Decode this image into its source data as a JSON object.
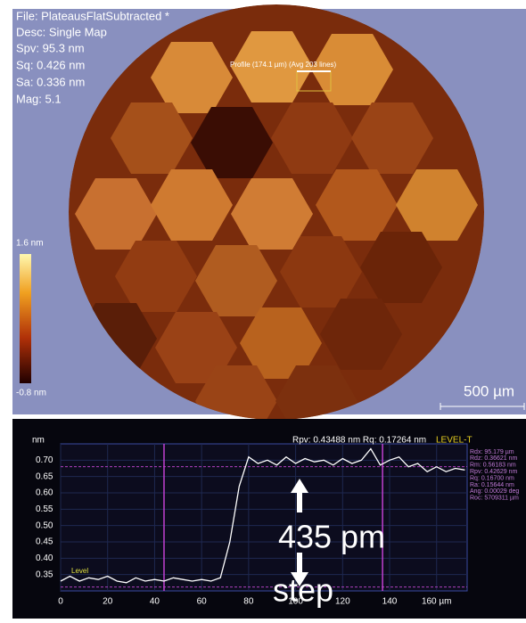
{
  "header": {
    "file": "File: PlateausFlatSubtracted *",
    "desc": "Desc: Single Map",
    "spv": "Spv: 95.3 nm",
    "sq": "Sq: 0.426 nm",
    "sa": "Sa: 0.336 nm",
    "mag": "Mag: 5.1"
  },
  "map": {
    "profile_label": "Profile (174.1 µm) (Avg 203 lines)",
    "colorbar_max": "1.6 nm",
    "colorbar_min": "-0.8 nm",
    "scale_bar": "500 µm"
  },
  "chart_data": {
    "type": "line",
    "y_unit": "nm",
    "header_stats": "Rpv: 0.43488 nm  Rq: 0.17264 nm",
    "mode": "LEVEL-T",
    "level_label": "Level",
    "annotation": "435 pm",
    "annotation_2": "step",
    "x": [
      0,
      4,
      8,
      12,
      16,
      20,
      24,
      28,
      32,
      36,
      40,
      44,
      48,
      52,
      56,
      60,
      64,
      68,
      72,
      76,
      80,
      84,
      88,
      92,
      96,
      100,
      104,
      108,
      112,
      116,
      120,
      124,
      128,
      132,
      136,
      140,
      144,
      148,
      152,
      156,
      160,
      164,
      168,
      172
    ],
    "series": [
      {
        "color": "#ffffff",
        "values": [
          0.33,
          0.345,
          0.33,
          0.34,
          0.335,
          0.345,
          0.33,
          0.325,
          0.34,
          0.33,
          0.335,
          0.33,
          0.34,
          0.335,
          0.33,
          0.335,
          0.33,
          0.34,
          0.45,
          0.62,
          0.71,
          0.69,
          0.7,
          0.685,
          0.71,
          0.69,
          0.705,
          0.695,
          0.7,
          0.685,
          0.705,
          0.69,
          0.7,
          0.735,
          0.685,
          0.7,
          0.71,
          0.68,
          0.69,
          0.665,
          0.68,
          0.665,
          0.675,
          0.67
        ]
      }
    ],
    "cursors_x": [
      44,
      137
    ],
    "level_lines": [
      0.68,
      0.312
    ],
    "xlim": [
      0,
      173
    ],
    "ylim": [
      0.3,
      0.75
    ],
    "xticks": [
      0,
      20,
      40,
      60,
      80,
      100,
      120,
      140,
      {
        "value": 160,
        "label": "160 µm"
      }
    ],
    "yticks": [
      0.35,
      {
        "value": 0.4,
        "label": "0.40"
      },
      0.45,
      {
        "value": 0.5,
        "label": "0.50"
      },
      0.55,
      {
        "value": 0.6,
        "label": "0.60"
      },
      0.65,
      {
        "value": 0.7,
        "label": "0.70"
      }
    ],
    "stats": [
      "Rdx: 95.179 µm",
      "Rdz: 0.36621 nm",
      "Rm: 0.56183 nm",
      "Rpv: 0.42629 nm",
      "Rq: 0.16700 nm",
      "Ra: 0.15644 nm",
      "Ang: 0.00029 deg",
      "Roc: 5709311 µm"
    ]
  }
}
